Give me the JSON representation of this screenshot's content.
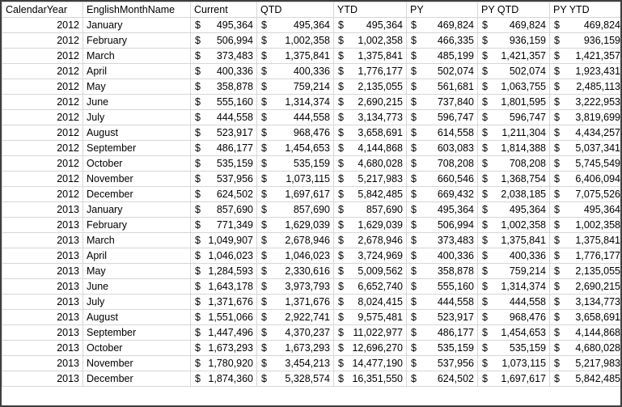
{
  "table": {
    "currency_symbol": "$",
    "columns": [
      "CalendarYear",
      "EnglishMonthName",
      "Current",
      "QTD",
      "YTD",
      "PY",
      "PY QTD",
      "PY YTD"
    ],
    "rows": [
      {
        "year": "2012",
        "month": "January",
        "values": [
          "495,364",
          "495,364",
          "495,364",
          "469,824",
          "469,824",
          "469,824"
        ]
      },
      {
        "year": "2012",
        "month": "February",
        "values": [
          "506,994",
          "1,002,358",
          "1,002,358",
          "466,335",
          "936,159",
          "936,159"
        ]
      },
      {
        "year": "2012",
        "month": "March",
        "values": [
          "373,483",
          "1,375,841",
          "1,375,841",
          "485,199",
          "1,421,357",
          "1,421,357"
        ]
      },
      {
        "year": "2012",
        "month": "April",
        "values": [
          "400,336",
          "400,336",
          "1,776,177",
          "502,074",
          "502,074",
          "1,923,431"
        ]
      },
      {
        "year": "2012",
        "month": "May",
        "values": [
          "358,878",
          "759,214",
          "2,135,055",
          "561,681",
          "1,063,755",
          "2,485,113"
        ]
      },
      {
        "year": "2012",
        "month": "June",
        "values": [
          "555,160",
          "1,314,374",
          "2,690,215",
          "737,840",
          "1,801,595",
          "3,222,953"
        ]
      },
      {
        "year": "2012",
        "month": "July",
        "values": [
          "444,558",
          "444,558",
          "3,134,773",
          "596,747",
          "596,747",
          "3,819,699"
        ]
      },
      {
        "year": "2012",
        "month": "August",
        "values": [
          "523,917",
          "968,476",
          "3,658,691",
          "614,558",
          "1,211,304",
          "4,434,257"
        ]
      },
      {
        "year": "2012",
        "month": "September",
        "values": [
          "486,177",
          "1,454,653",
          "4,144,868",
          "603,083",
          "1,814,388",
          "5,037,341"
        ]
      },
      {
        "year": "2012",
        "month": "October",
        "values": [
          "535,159",
          "535,159",
          "4,680,028",
          "708,208",
          "708,208",
          "5,745,549"
        ]
      },
      {
        "year": "2012",
        "month": "November",
        "values": [
          "537,956",
          "1,073,115",
          "5,217,983",
          "660,546",
          "1,368,754",
          "6,406,094"
        ]
      },
      {
        "year": "2012",
        "month": "December",
        "values": [
          "624,502",
          "1,697,617",
          "5,842,485",
          "669,432",
          "2,038,185",
          "7,075,526"
        ]
      },
      {
        "year": "2013",
        "month": "January",
        "values": [
          "857,690",
          "857,690",
          "857,690",
          "495,364",
          "495,364",
          "495,364"
        ]
      },
      {
        "year": "2013",
        "month": "February",
        "values": [
          "771,349",
          "1,629,039",
          "1,629,039",
          "506,994",
          "1,002,358",
          "1,002,358"
        ]
      },
      {
        "year": "2013",
        "month": "March",
        "values": [
          "1,049,907",
          "2,678,946",
          "2,678,946",
          "373,483",
          "1,375,841",
          "1,375,841"
        ]
      },
      {
        "year": "2013",
        "month": "April",
        "values": [
          "1,046,023",
          "1,046,023",
          "3,724,969",
          "400,336",
          "400,336",
          "1,776,177"
        ]
      },
      {
        "year": "2013",
        "month": "May",
        "values": [
          "1,284,593",
          "2,330,616",
          "5,009,562",
          "358,878",
          "759,214",
          "2,135,055"
        ]
      },
      {
        "year": "2013",
        "month": "June",
        "values": [
          "1,643,178",
          "3,973,793",
          "6,652,740",
          "555,160",
          "1,314,374",
          "2,690,215"
        ]
      },
      {
        "year": "2013",
        "month": "July",
        "values": [
          "1,371,676",
          "1,371,676",
          "8,024,415",
          "444,558",
          "444,558",
          "3,134,773"
        ]
      },
      {
        "year": "2013",
        "month": "August",
        "values": [
          "1,551,066",
          "2,922,741",
          "9,575,481",
          "523,917",
          "968,476",
          "3,658,691"
        ]
      },
      {
        "year": "2013",
        "month": "September",
        "values": [
          "1,447,496",
          "4,370,237",
          "11,022,977",
          "486,177",
          "1,454,653",
          "4,144,868"
        ]
      },
      {
        "year": "2013",
        "month": "October",
        "values": [
          "1,673,293",
          "1,673,293",
          "12,696,270",
          "535,159",
          "535,159",
          "4,680,028"
        ]
      },
      {
        "year": "2013",
        "month": "November",
        "values": [
          "1,780,920",
          "3,454,213",
          "14,477,190",
          "537,956",
          "1,073,115",
          "5,217,983"
        ]
      },
      {
        "year": "2013",
        "month": "December",
        "values": [
          "1,874,360",
          "5,328,574",
          "16,351,550",
          "624,502",
          "1,697,617",
          "5,842,485"
        ]
      }
    ]
  },
  "colors": {
    "background": "#ffffff",
    "text": "#000000",
    "grid_line": "#d6d6d6",
    "outer_border": "#3f3f3f"
  }
}
